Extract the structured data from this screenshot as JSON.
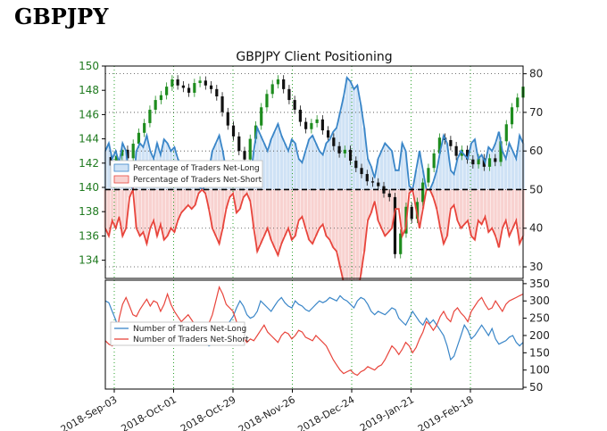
{
  "page": {
    "title": "GBPJPY"
  },
  "colors": {
    "long": "#3a86c8",
    "short": "#e8453c",
    "long_fill": "#cfe2f5",
    "short_fill": "#f8d2d0",
    "candle_up": "#1e8c1e",
    "candle_down": "#111111",
    "grid": "#2aa02a"
  },
  "chart_data": [
    {
      "type": "line",
      "title": "GBPJPY Client Positioning",
      "x_tick_labels": [
        "2018-Sep-03",
        "2018-Oct-01",
        "2018-Oct-29",
        "2018-Nov-26",
        "2018-Dec-24",
        "2019-Jan-21",
        "2019-Feb-18"
      ],
      "left_axis": {
        "ylim": [
          132.5,
          150
        ],
        "ticks": [
          134,
          136,
          138,
          140,
          142,
          144,
          146,
          148,
          150
        ]
      },
      "right_axis": {
        "ylim": [
          27,
          82
        ],
        "ticks": [
          30,
          40,
          50,
          60,
          70,
          80
        ]
      },
      "reference_line": 50,
      "legend": {
        "entries": [
          "Percentage of Traders Net-Long",
          "Percentage of Traders Net-Short"
        ],
        "placement": "left"
      },
      "grid": true,
      "series": [
        {
          "name": "Percentage of Traders Net-Long",
          "axis": "right",
          "values": [
            60,
            62,
            58,
            60,
            57,
            62,
            60,
            52,
            50,
            60,
            62,
            61,
            64,
            60,
            58,
            62,
            59,
            63,
            62,
            60,
            61,
            58,
            56,
            55,
            54,
            55,
            54,
            51,
            50,
            51,
            55,
            60,
            62,
            64,
            60,
            55,
            52,
            51,
            56,
            55,
            52,
            51,
            53,
            60,
            66,
            64,
            62,
            60,
            63,
            65,
            67,
            64,
            62,
            60,
            63,
            62,
            58,
            57,
            60,
            63,
            64,
            62,
            60,
            59,
            62,
            63,
            65,
            66,
            70,
            74,
            79,
            78,
            76,
            77,
            72,
            66,
            58,
            56,
            53,
            58,
            60,
            62,
            61,
            60,
            55,
            55,
            62,
            60,
            51,
            50,
            55,
            60,
            55,
            50,
            50,
            52,
            55,
            60,
            64,
            62,
            55,
            54,
            58,
            60,
            59,
            58,
            62,
            63,
            58,
            59,
            57,
            61,
            60,
            62,
            65,
            60,
            58,
            62,
            60,
            58,
            64,
            62
          ]
        },
        {
          "name": "Percentage of Traders Net-Short",
          "axis": "right",
          "values": [
            40,
            38,
            42,
            40,
            43,
            38,
            40,
            48,
            50,
            40,
            38,
            39,
            36,
            40,
            42,
            38,
            41,
            37,
            38,
            40,
            39,
            42,
            44,
            45,
            46,
            45,
            46,
            49,
            50,
            49,
            45,
            40,
            38,
            36,
            40,
            45,
            48,
            49,
            44,
            45,
            48,
            49,
            47,
            40,
            34,
            36,
            38,
            40,
            37,
            35,
            33,
            36,
            38,
            40,
            37,
            38,
            42,
            43,
            40,
            37,
            36,
            38,
            40,
            41,
            38,
            37,
            35,
            34,
            30,
            26,
            21,
            22,
            24,
            23,
            28,
            34,
            42,
            44,
            47,
            42,
            40,
            38,
            39,
            40,
            45,
            45,
            38,
            40,
            49,
            50,
            45,
            40,
            45,
            50,
            50,
            48,
            45,
            40,
            36,
            38,
            45,
            46,
            42,
            40,
            41,
            42,
            38,
            37,
            42,
            41,
            43,
            39,
            40,
            38,
            35,
            40,
            42,
            38,
            40,
            42,
            36,
            38
          ]
        },
        {
          "name": "GBPJPY",
          "axis": "left",
          "values": [
            142.5,
            141.8,
            142.6,
            143.1,
            142.4,
            143.6,
            144.5,
            145.3,
            146.4,
            147.2,
            147.6,
            148.3,
            148.9,
            148.4,
            148.2,
            147.8,
            148.6,
            148.8,
            148.4,
            148.1,
            147.5,
            146.2,
            145.1,
            144.2,
            143.0,
            142.3,
            144.0,
            145.1,
            146.6,
            147.7,
            148.5,
            148.9,
            148.1,
            147.2,
            146.4,
            145.4,
            144.8,
            145.3,
            145.6,
            144.7,
            144.1,
            143.4,
            142.8,
            143.1,
            142.2,
            141.6,
            141.1,
            140.5,
            140.4,
            140.1,
            139.5,
            139.2,
            134.5,
            136.2,
            138.4,
            137.4,
            138.8,
            140.4,
            141.6,
            142.8,
            144.1,
            143.9,
            143.4,
            142.6,
            143.1,
            142.3,
            141.9,
            142.4,
            141.7,
            142.4,
            142.1,
            143.8,
            145.2,
            146.6,
            147.4,
            148.3
          ]
        }
      ]
    },
    {
      "type": "line",
      "right_axis": {
        "ylim": [
          45,
          360
        ],
        "ticks": [
          50,
          100,
          150,
          200,
          250,
          300,
          350
        ]
      },
      "legend": {
        "entries": [
          "Number of Traders Net-Long",
          "Number of Traders Net-Short"
        ],
        "placement": "left"
      },
      "series": [
        {
          "name": "Number of Traders Net-Long",
          "values": [
            300,
            295,
            270,
            245,
            210,
            190,
            185,
            175,
            180,
            195,
            200,
            210,
            190,
            185,
            200,
            205,
            195,
            210,
            220,
            205,
            195,
            190,
            200,
            220,
            210,
            225,
            230,
            215,
            200,
            180,
            170,
            175,
            190,
            200,
            220,
            230,
            240,
            255,
            280,
            300,
            285,
            260,
            250,
            255,
            270,
            300,
            290,
            280,
            270,
            285,
            300,
            310,
            295,
            285,
            280,
            300,
            290,
            285,
            275,
            270,
            280,
            290,
            300,
            295,
            300,
            310,
            305,
            300,
            315,
            305,
            300,
            290,
            280,
            300,
            310,
            305,
            290,
            270,
            260,
            270,
            265,
            260,
            270,
            280,
            275,
            250,
            240,
            230,
            250,
            270,
            255,
            240,
            230,
            250,
            235,
            245,
            230,
            215,
            200,
            170,
            130,
            140,
            170,
            200,
            230,
            215,
            190,
            200,
            215,
            230,
            215,
            200,
            220,
            190,
            175,
            180,
            185,
            195,
            200,
            180,
            170,
            180
          ]
        },
        {
          "name": "Number of Traders Net-Short",
          "values": [
            185,
            175,
            170,
            180,
            250,
            290,
            310,
            285,
            260,
            255,
            275,
            290,
            305,
            285,
            300,
            295,
            270,
            290,
            320,
            290,
            270,
            255,
            240,
            250,
            260,
            245,
            230,
            220,
            205,
            215,
            235,
            260,
            300,
            340,
            320,
            290,
            280,
            270,
            240,
            210,
            195,
            180,
            190,
            185,
            200,
            215,
            230,
            210,
            200,
            190,
            180,
            200,
            210,
            205,
            190,
            200,
            215,
            210,
            195,
            190,
            185,
            200,
            190,
            180,
            170,
            150,
            130,
            115,
            100,
            90,
            95,
            100,
            90,
            85,
            95,
            100,
            110,
            105,
            100,
            110,
            115,
            130,
            150,
            170,
            160,
            145,
            160,
            180,
            170,
            150,
            165,
            190,
            210,
            240,
            230,
            215,
            230,
            255,
            270,
            250,
            240,
            270,
            280,
            265,
            255,
            240,
            270,
            285,
            300,
            310,
            290,
            275,
            280,
            300,
            285,
            270,
            290,
            300,
            305,
            310,
            315,
            320
          ]
        }
      ]
    }
  ]
}
